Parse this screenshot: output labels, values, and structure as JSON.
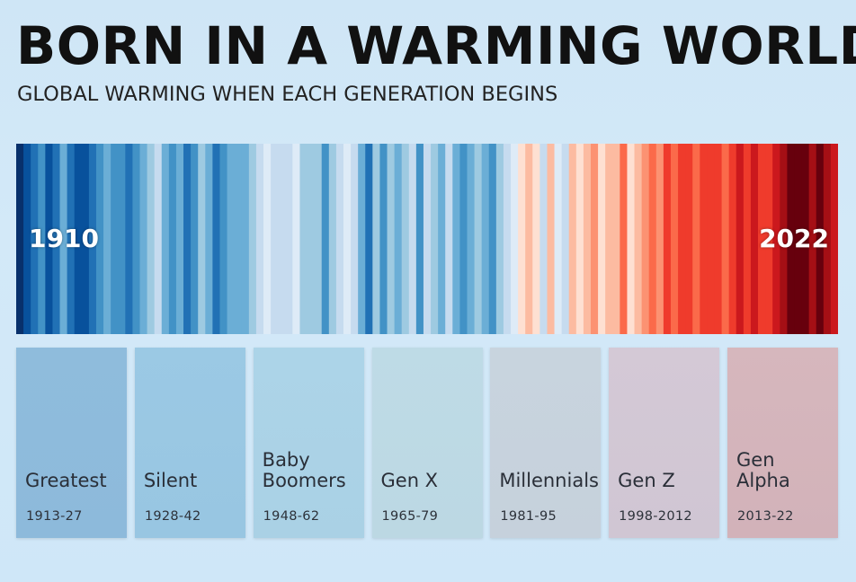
{
  "title": "BORN IN A WARMING WORLD",
  "subtitle": "GLOBAL WARMING WHEN EACH GENERATION BEGINS",
  "chart_data": {
    "type": "heatmap",
    "x_start": 1910,
    "x_end": 2022,
    "start_label": "1910",
    "end_label": "2022",
    "stripe_colors": [
      "#08306b",
      "#08519c",
      "#2171b5",
      "#4292c6",
      "#08519c",
      "#2171b5",
      "#6baed6",
      "#2171b5",
      "#08519c",
      "#08519c",
      "#2171b5",
      "#4292c6",
      "#6baed6",
      "#4292c6",
      "#4292c6",
      "#2171b5",
      "#4292c6",
      "#6baed6",
      "#9ecae1",
      "#c6dbef",
      "#6baed6",
      "#4292c6",
      "#6baed6",
      "#2171b5",
      "#4292c6",
      "#9ecae1",
      "#6baed6",
      "#2171b5",
      "#4292c6",
      "#6baed6",
      "#6baed6",
      "#6baed6",
      "#9ecae1",
      "#c6dbef",
      "#deebf7",
      "#c6dbef",
      "#c6dbef",
      "#c6dbef",
      "#deebf7",
      "#9ecae1",
      "#9ecae1",
      "#9ecae1",
      "#4292c6",
      "#9ecae1",
      "#c6dbef",
      "#deebf7",
      "#c6dbef",
      "#6baed6",
      "#2171b5",
      "#9ecae1",
      "#4292c6",
      "#9ecae1",
      "#6baed6",
      "#9ecae1",
      "#c6dbef",
      "#4292c6",
      "#c6dbef",
      "#9ecae1",
      "#6baed6",
      "#c6dbef",
      "#6baed6",
      "#4292c6",
      "#6baed6",
      "#9ecae1",
      "#6baed6",
      "#4292c6",
      "#9ecae1",
      "#c6dbef",
      "#deebf7",
      "#fee0d2",
      "#fcbba1",
      "#fee0d2",
      "#c6dbef",
      "#fcbba1",
      "#deebf7",
      "#c6dbef",
      "#fcbba1",
      "#fee0d2",
      "#fcbba1",
      "#fc9272",
      "#fee0d2",
      "#fcbba1",
      "#fcbba1",
      "#fb6a4a",
      "#fee0d2",
      "#fcbba1",
      "#fc9272",
      "#fb6a4a",
      "#fc9272",
      "#ef3b2c",
      "#fb6a4a",
      "#ef3b2c",
      "#ef3b2c",
      "#fb6a4a",
      "#ef3b2c",
      "#ef3b2c",
      "#ef3b2c",
      "#fb6a4a",
      "#ef3b2c",
      "#cb181d",
      "#ef3b2c",
      "#cb181d",
      "#ef3b2c",
      "#ef3b2c",
      "#cb181d",
      "#a50f15",
      "#67000d",
      "#67000d",
      "#67000d",
      "#a50f15",
      "#67000d",
      "#a50f15",
      "#cb181d"
    ],
    "generations": [
      {
        "name": "Greatest",
        "years": "1913-27",
        "color_top": "#8fbcdc",
        "color_bottom": "#8dbadb"
      },
      {
        "name": "Silent",
        "years": "1928-42",
        "color_top": "#9bc9e4",
        "color_bottom": "#98c6e2"
      },
      {
        "name": "Baby\nBoomers",
        "years": "1948-62",
        "color_top": "#acd4e8",
        "color_bottom": "#aad1e5"
      },
      {
        "name": "Gen X",
        "years": "1965-79",
        "color_top": "#bedbe6",
        "color_bottom": "#bcd8e3"
      },
      {
        "name": "Millennials",
        "years": "1981-95",
        "color_top": "#c8d4de",
        "color_bottom": "#c6d1dc"
      },
      {
        "name": "Gen Z",
        "years": "1998-2012",
        "color_top": "#d4c9d6",
        "color_bottom": "#d0c6d3"
      },
      {
        "name": "Gen\nAlpha",
        "years": "2013-22",
        "color_top": "#d6b7bd",
        "color_bottom": "#d2b2b9"
      }
    ]
  }
}
